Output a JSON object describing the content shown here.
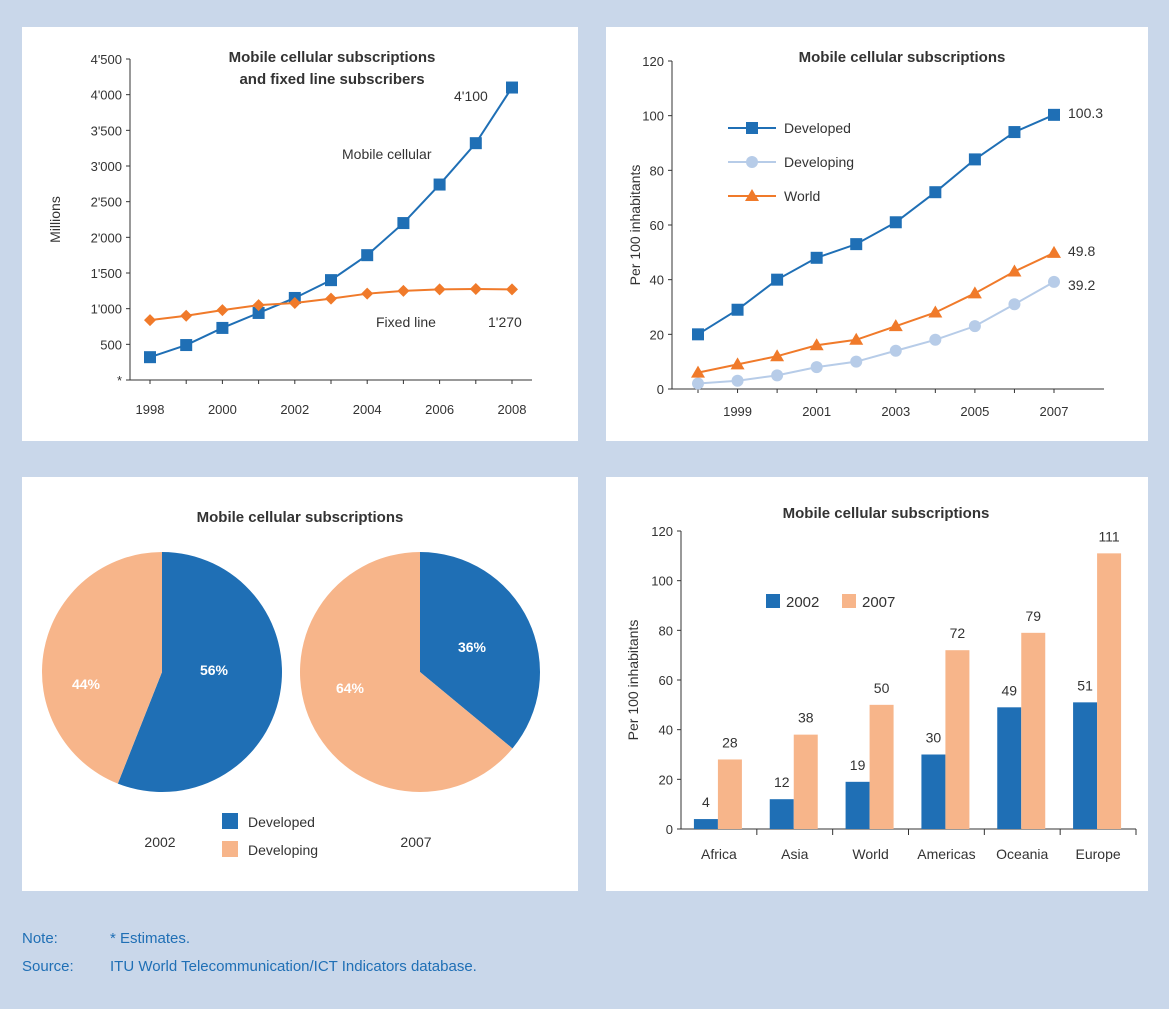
{
  "notes": {
    "note_label": "Note:",
    "note_text": "* Estimates.",
    "source_label": "Source:",
    "source_text": "ITU World Telecommunication/ICT Indicators database."
  },
  "colors": {
    "blue": "#1f6fb5",
    "orange": "#f07a2a",
    "lightblue": "#b7cce8",
    "salmon": "#f7b58a"
  },
  "chart_data": [
    {
      "type": "line",
      "title": "Mobile cellular subscriptions and fixed line subscribers",
      "title_lines": [
        "Mobile cellular subscriptions",
        "and fixed line subscribers"
      ],
      "ylabel": "Millions",
      "xlim": [
        1998,
        2008
      ],
      "ylim": [
        0,
        4500
      ],
      "x_ticks": [
        1998,
        2000,
        2002,
        2004,
        2006,
        2008
      ],
      "y_ticks": [
        {
          "v": 0,
          "label": "*"
        },
        {
          "v": 500,
          "label": "500"
        },
        {
          "v": 1000,
          "label": "1'000"
        },
        {
          "v": 1500,
          "label": "1'500"
        },
        {
          "v": 2000,
          "label": "2'000"
        },
        {
          "v": 2500,
          "label": "2'500"
        },
        {
          "v": 3000,
          "label": "3'000"
        },
        {
          "v": 3500,
          "label": "3'500"
        },
        {
          "v": 4000,
          "label": "4'000"
        },
        {
          "v": 4500,
          "label": "4'500"
        }
      ],
      "x": [
        1998,
        1999,
        2000,
        2001,
        2002,
        2003,
        2004,
        2005,
        2006,
        2007,
        2008
      ],
      "series": [
        {
          "name": "Mobile cellular",
          "marker": "square",
          "color": "#1f6fb5",
          "values": [
            320,
            490,
            730,
            940,
            1150,
            1400,
            1750,
            2200,
            2740,
            3320,
            4100
          ]
        },
        {
          "name": "Fixed line",
          "marker": "diamond",
          "color": "#f07a2a",
          "values": [
            840,
            900,
            980,
            1050,
            1080,
            1140,
            1210,
            1250,
            1270,
            1275,
            1270
          ]
        }
      ],
      "annotations": [
        "4'100",
        "1'270"
      ]
    },
    {
      "type": "line",
      "title": "Mobile cellular subscriptions",
      "ylabel": "Per 100 inhabitants",
      "xlim": [
        1998,
        2007
      ],
      "ylim": [
        0,
        120
      ],
      "x_ticks": [
        1999,
        2001,
        2003,
        2005,
        2007
      ],
      "y_ticks": [
        0,
        20,
        40,
        60,
        80,
        100,
        120
      ],
      "x": [
        1998,
        1999,
        2000,
        2001,
        2002,
        2003,
        2004,
        2005,
        2006,
        2007
      ],
      "series": [
        {
          "name": "Developed",
          "marker": "square",
          "color": "#1f6fb5",
          "values": [
            20,
            29,
            40,
            48,
            53,
            61,
            72,
            84,
            94,
            100.3
          ]
        },
        {
          "name": "Developing",
          "marker": "circle",
          "color": "#b7cce8",
          "values": [
            2,
            3,
            5,
            8,
            10,
            14,
            18,
            23,
            31,
            39.2
          ]
        },
        {
          "name": "World",
          "marker": "triangle",
          "color": "#f07a2a",
          "values": [
            6,
            9,
            12,
            16,
            18,
            23,
            28,
            35,
            43,
            49.8
          ]
        }
      ],
      "end_labels": [
        "100.3",
        "39.2",
        "49.8"
      ],
      "legend": "top-left"
    },
    {
      "type": "pie",
      "title": "Mobile cellular subscriptions",
      "legend": [
        "Developed",
        "Developing"
      ],
      "pies": [
        {
          "label": "2002",
          "slices": [
            {
              "name": "Developed",
              "value": 56,
              "label": "56%"
            },
            {
              "name": "Developing",
              "value": 44,
              "label": "44%"
            }
          ]
        },
        {
          "label": "2007",
          "slices": [
            {
              "name": "Developed",
              "value": 36,
              "label": "36%"
            },
            {
              "name": "Developing",
              "value": 64,
              "label": "64%"
            }
          ]
        }
      ]
    },
    {
      "type": "bar",
      "title": "Mobile cellular subscriptions",
      "ylabel": "Per 100 inhabitants",
      "ylim": [
        0,
        120
      ],
      "y_ticks": [
        0,
        20,
        40,
        60,
        80,
        100,
        120
      ],
      "categories": [
        "Africa",
        "Asia",
        "World",
        "Americas",
        "Oceania",
        "Europe"
      ],
      "series": [
        {
          "name": "2002",
          "color": "#1f6fb5",
          "values": [
            4,
            12,
            19,
            30,
            49,
            51
          ]
        },
        {
          "name": "2007",
          "color": "#f7b58a",
          "values": [
            28,
            38,
            50,
            72,
            79,
            111
          ]
        }
      ],
      "legend": "top-left"
    }
  ]
}
